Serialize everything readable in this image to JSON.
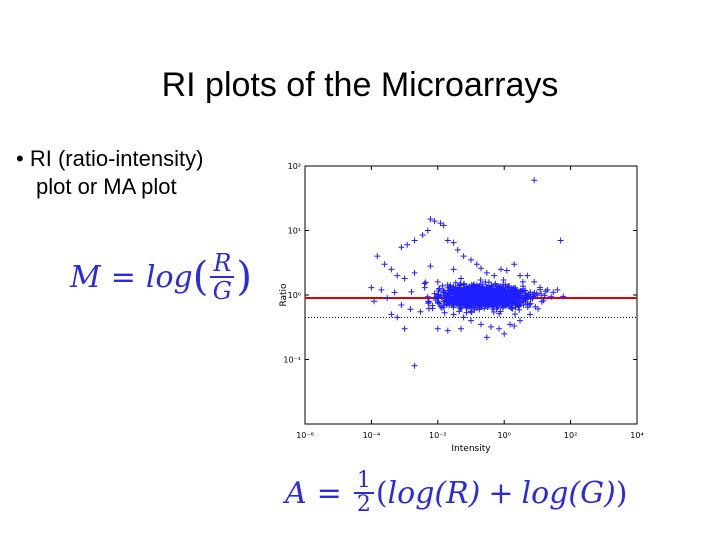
{
  "slide": {
    "title": "RI plots of the Microarrays",
    "bullet": {
      "symbol": "•",
      "line1": "RI (ratio-intensity)",
      "line2": "plot or MA plot"
    },
    "equation_m": {
      "lhs": "M",
      "eq": "=",
      "fn": "log",
      "open": "(",
      "num": "R",
      "den": "G",
      "close": ")"
    },
    "equation_a": {
      "lhs": "A",
      "eq": "=",
      "num": "1",
      "den": "2",
      "open": "(",
      "term1": "log(R)",
      "plus": "+",
      "term2": "log(G)",
      "close": ")"
    },
    "colors": {
      "equation": "#2a2adf",
      "points": "#1f1fff",
      "refline": "#e00000"
    }
  },
  "chart_data": {
    "type": "scatter",
    "marker": "plus",
    "xlabel": "Intensity",
    "ylabel": "Ratio",
    "xscale": "log",
    "yscale": "log",
    "xlim": [
      1e-06,
      10000.0
    ],
    "ylim": [
      0.01,
      100
    ],
    "x_ticks": [
      {
        "value": 1e-06,
        "label": "10⁻⁶"
      },
      {
        "value": 0.0001,
        "label": "10⁻⁴"
      },
      {
        "value": 0.01,
        "label": "10⁻²"
      },
      {
        "value": 1,
        "label": "10⁰"
      },
      {
        "value": 100.0,
        "label": "10²"
      },
      {
        "value": 10000.0,
        "label": "10⁴"
      }
    ],
    "y_ticks": [
      {
        "value": 100,
        "label": "10²"
      },
      {
        "value": 10,
        "label": "10¹"
      },
      {
        "value": 1,
        "label": "10⁰"
      },
      {
        "value": 0.1,
        "label": "10⁻¹"
      }
    ],
    "reference_line_y": 0.9,
    "dotted_line_y": 0.45,
    "points": [
      [
        0.0008,
        5.5
      ],
      [
        0.0012,
        6
      ],
      [
        0.002,
        7
      ],
      [
        0.0035,
        8.5
      ],
      [
        0.005,
        10
      ],
      [
        0.006,
        15
      ],
      [
        0.008,
        14
      ],
      [
        0.012,
        13
      ],
      [
        0.015,
        12
      ],
      [
        0.02,
        7
      ],
      [
        0.03,
        6.5
      ],
      [
        0.04,
        5
      ],
      [
        0.06,
        4
      ],
      [
        0.1,
        3.5
      ],
      [
        0.15,
        3
      ],
      [
        0.2,
        2.6
      ],
      [
        0.3,
        2.2
      ],
      [
        0.5,
        2
      ],
      [
        0.8,
        2.5
      ],
      [
        1.2,
        2.4
      ],
      [
        2,
        3
      ],
      [
        3,
        2
      ],
      [
        5,
        2
      ],
      [
        8,
        1.6
      ],
      [
        12,
        1.3
      ],
      [
        20,
        1.2
      ],
      [
        30,
        1.1
      ],
      [
        40,
        1.2
      ],
      [
        60,
        0.95
      ],
      [
        8,
        60
      ],
      [
        50,
        7
      ],
      [
        0.00015,
        4
      ],
      [
        0.00025,
        3
      ],
      [
        0.0004,
        2.5
      ],
      [
        0.0006,
        2
      ],
      [
        0.001,
        1.8
      ],
      [
        0.002,
        2.2
      ],
      [
        0.004,
        1.5
      ],
      [
        0.006,
        2.8
      ],
      [
        0.01,
        1.6
      ],
      [
        0.03,
        2.5
      ],
      [
        0.05,
        1.8
      ],
      [
        0.0002,
        1.2
      ],
      [
        0.0003,
        0.9
      ],
      [
        0.0005,
        1.1
      ],
      [
        0.0001,
        1.3
      ],
      [
        0.00012,
        0.8
      ],
      [
        0.0008,
        0.7
      ],
      [
        0.0015,
        0.6
      ],
      [
        0.003,
        0.55
      ],
      [
        0.007,
        0.62
      ],
      [
        0.015,
        0.7
      ],
      [
        0.03,
        0.5
      ],
      [
        0.06,
        0.45
      ],
      [
        0.1,
        0.4
      ],
      [
        0.2,
        0.35
      ],
      [
        0.4,
        0.32
      ],
      [
        0.7,
        0.3
      ],
      [
        1.5,
        0.35
      ],
      [
        3,
        0.4
      ],
      [
        6,
        0.5
      ],
      [
        0.001,
        0.3
      ],
      [
        0.002,
        0.08
      ],
      [
        0.01,
        0.3
      ],
      [
        0.02,
        0.28
      ],
      [
        0.05,
        0.3
      ],
      [
        0.3,
        0.22
      ],
      [
        1,
        0.25
      ],
      [
        2,
        0.33
      ],
      [
        0.0004,
        0.5
      ],
      [
        0.0006,
        0.45
      ]
    ],
    "cloud": {
      "x_center": 0.25,
      "x_spread": 1.4,
      "y_center": 0.95,
      "y_spread": 0.45,
      "count": 1400
    }
  }
}
